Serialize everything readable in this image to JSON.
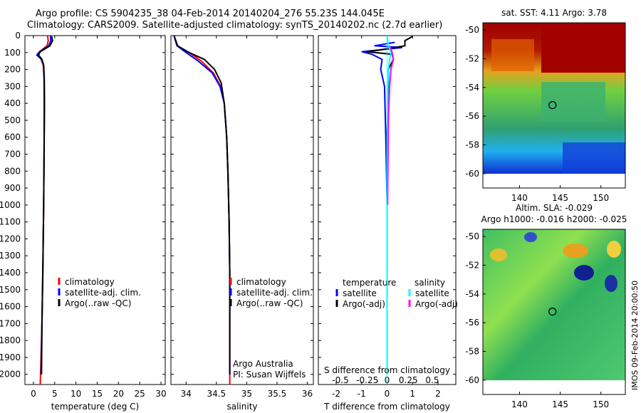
{
  "title_line1": "Argo profile: CS 5904235_38 04-Feb-2014 20140204_276 55.23S 144.045E",
  "title_line2": "Climatology: CARS2009. Satellite-adjusted climatology: synTS_20140202.nc (2.7d earlier)",
  "side_stamp": "IMOS 09-Feb-2014 20:00:50",
  "colors": {
    "climatology": "#ff0000",
    "satellite": "#0000ff",
    "argo": "#000000",
    "sat_s": "#00ffff",
    "argo_s": "#ff00ff"
  },
  "chart_data": [
    {
      "type": "line",
      "xlabel": "temperature (deg C)",
      "ylabel": "",
      "xlim": [
        -2,
        31
      ],
      "ylim": [
        2060,
        0
      ],
      "xticks": [
        0,
        5,
        10,
        15,
        20,
        25,
        30
      ],
      "yticks": [
        0,
        100,
        200,
        300,
        400,
        500,
        600,
        700,
        800,
        900,
        1000,
        1100,
        1200,
        1300,
        1400,
        1500,
        1600,
        1700,
        1800,
        1900,
        2000
      ],
      "legend": [
        "climatology",
        "satellite-adj. clim.",
        "Argo(..raw -QC)"
      ],
      "series": [
        {
          "name": "climatology",
          "color": "#ff0000",
          "points": [
            [
              3.3,
              0
            ],
            [
              3.5,
              30
            ],
            [
              3.2,
              60
            ],
            [
              1.4,
              95
            ],
            [
              1.0,
              115
            ],
            [
              1.8,
              140
            ],
            [
              2.3,
              175
            ],
            [
              2.5,
              250
            ],
            [
              2.55,
              400
            ],
            [
              2.5,
              700
            ],
            [
              2.4,
              1000
            ],
            [
              2.2,
              1400
            ],
            [
              2.0,
              1700
            ],
            [
              1.6,
              2060
            ]
          ]
        },
        {
          "name": "satellite-adj. clim.",
          "color": "#0000ff",
          "points": [
            [
              4.0,
              0
            ],
            [
              4.1,
              30
            ],
            [
              3.6,
              60
            ],
            [
              1.3,
              98
            ],
            [
              0.8,
              115
            ],
            [
              1.9,
              140
            ],
            [
              2.4,
              175
            ],
            [
              2.55,
              250
            ],
            [
              2.6,
              400
            ],
            [
              2.5,
              700
            ],
            [
              2.4,
              1000
            ],
            [
              2.2,
              1400
            ],
            [
              2.0,
              1700
            ],
            [
              1.8,
              2000
            ]
          ]
        },
        {
          "name": "Argo(..raw -QC)",
          "color": "#000000",
          "points": [
            [
              4.3,
              5
            ],
            [
              4.5,
              30
            ],
            [
              3.9,
              60
            ],
            [
              1.6,
              95
            ],
            [
              1.2,
              115
            ],
            [
              2.0,
              140
            ],
            [
              2.4,
              175
            ],
            [
              2.5,
              250
            ],
            [
              2.55,
              400
            ],
            [
              2.5,
              700
            ],
            [
              2.4,
              1000
            ],
            [
              2.2,
              1400
            ],
            [
              2.0,
              1700
            ],
            [
              1.9,
              2000
            ]
          ]
        }
      ]
    },
    {
      "type": "line",
      "xlabel": "salinity",
      "ylabel": "",
      "xlim": [
        33.75,
        36.1
      ],
      "ylim": [
        2060,
        0
      ],
      "xticks": [
        34,
        34.5,
        35,
        35.5,
        36
      ],
      "legend": [
        "climatology",
        "satellite-adj. clim.",
        "Argo(..raw -QC)"
      ],
      "annotation": [
        "Argo Australia",
        "PI: Susan Wijffels"
      ],
      "series": [
        {
          "name": "climatology",
          "color": "#ff0000",
          "points": [
            [
              33.8,
              0
            ],
            [
              33.85,
              60
            ],
            [
              34.05,
              100
            ],
            [
              34.25,
              150
            ],
            [
              34.45,
              220
            ],
            [
              34.57,
              300
            ],
            [
              34.63,
              400
            ],
            [
              34.67,
              600
            ],
            [
              34.69,
              800
            ],
            [
              34.71,
              1100
            ],
            [
              34.72,
              1400
            ],
            [
              34.72,
              1800
            ],
            [
              34.72,
              2060
            ]
          ]
        },
        {
          "name": "satellite-adj. clim.",
          "color": "#0000ff",
          "points": [
            [
              33.8,
              0
            ],
            [
              33.85,
              60
            ],
            [
              34.0,
              100
            ],
            [
              34.2,
              150
            ],
            [
              34.43,
              220
            ],
            [
              34.56,
              300
            ],
            [
              34.63,
              400
            ],
            [
              34.67,
              600
            ],
            [
              34.69,
              800
            ],
            [
              34.71,
              1100
            ],
            [
              34.72,
              1400
            ],
            [
              34.72,
              1800
            ],
            [
              34.72,
              2000
            ]
          ]
        },
        {
          "name": "Argo(..raw -QC)",
          "color": "#000000",
          "points": [
            [
              33.8,
              0
            ],
            [
              33.86,
              60
            ],
            [
              34.05,
              100
            ],
            [
              34.3,
              140
            ],
            [
              34.47,
              200
            ],
            [
              34.58,
              280
            ],
            [
              34.63,
              400
            ],
            [
              34.67,
              600
            ],
            [
              34.69,
              800
            ],
            [
              34.71,
              1100
            ],
            [
              34.72,
              1400
            ],
            [
              34.72,
              1800
            ],
            [
              34.72,
              2000
            ]
          ]
        }
      ]
    },
    {
      "type": "line",
      "xlabel": "T difference from climatology",
      "x2label": "S difference from climatology",
      "xlim": [
        -2.7,
        2.7
      ],
      "ylim": [
        2060,
        0
      ],
      "xticks": [
        -2,
        -1,
        0,
        1,
        2
      ],
      "x2ticks": [
        "-0.5",
        "-0.25",
        "0",
        "0.25",
        "0.5"
      ],
      "legend_title_t": "temperature",
      "legend_title_s": "salinity",
      "legend": [
        "satellite",
        "Argo(-adj)",
        "satellite",
        "Argo(-adj)"
      ],
      "series": [
        {
          "name": "temperature satellite",
          "color": "#0000ff",
          "points": [
            [
              0.3,
              40
            ],
            [
              -0.5,
              60
            ],
            [
              0.6,
              70
            ],
            [
              -1.0,
              95
            ],
            [
              -0.6,
              110
            ],
            [
              -0.2,
              140
            ],
            [
              -0.25,
              200
            ],
            [
              -0.1,
              300
            ],
            [
              -0.05,
              600
            ],
            [
              0,
              1000
            ],
            [
              0,
              1400
            ],
            [
              0,
              2000
            ]
          ]
        },
        {
          "name": "temperature Argo(-adj)",
          "color": "#000000",
          "points": [
            [
              1.0,
              5
            ],
            [
              0.7,
              30
            ],
            [
              0.7,
              60
            ],
            [
              -0.3,
              85
            ],
            [
              -0.8,
              95
            ],
            [
              0.2,
              110
            ],
            [
              0.25,
              140
            ],
            [
              0.05,
              200
            ],
            [
              0.05,
              300
            ],
            [
              0,
              600
            ],
            [
              0,
              1000
            ]
          ]
        },
        {
          "name": "salinity satellite",
          "color": "#00ffff",
          "points": [
            [
              0.0,
              0
            ],
            [
              0.05,
              60
            ],
            [
              0.15,
              100
            ],
            [
              0.1,
              140
            ],
            [
              0.05,
              200
            ],
            [
              0.02,
              400
            ],
            [
              0,
              800
            ],
            [
              0,
              1200
            ],
            [
              0,
              2000
            ]
          ]
        },
        {
          "name": "salinity Argo(-adj)",
          "color": "#ff00ff",
          "points": [
            [
              0.1,
              60
            ],
            [
              0.2,
              100
            ],
            [
              0.25,
              140
            ],
            [
              0.15,
              200
            ],
            [
              0.1,
              300
            ],
            [
              0.05,
              500
            ],
            [
              0.02,
              1000
            ]
          ]
        }
      ]
    },
    {
      "type": "heatmap",
      "title": "sat. SST: 4.11  Argo: 3.78",
      "xticks": [
        140,
        145,
        150
      ],
      "yticks": [
        -50,
        -52,
        -54,
        -56,
        -58,
        -60
      ],
      "xlim": [
        135.5,
        153
      ],
      "ylim": [
        -61,
        -49.5
      ],
      "marker": [
        144.05,
        -55.23
      ]
    },
    {
      "type": "heatmap",
      "title": "Altim. SLA: -0.029",
      "subtitle": "Argo h1000: -0.016 h2000: -0.025",
      "xticks": [
        140,
        145,
        150
      ],
      "yticks": [
        -50,
        -52,
        -54,
        -56,
        -58,
        -60
      ],
      "xlim": [
        135.5,
        153
      ],
      "ylim": [
        -61,
        -49.5
      ],
      "marker": [
        144.05,
        -55.23
      ]
    }
  ]
}
